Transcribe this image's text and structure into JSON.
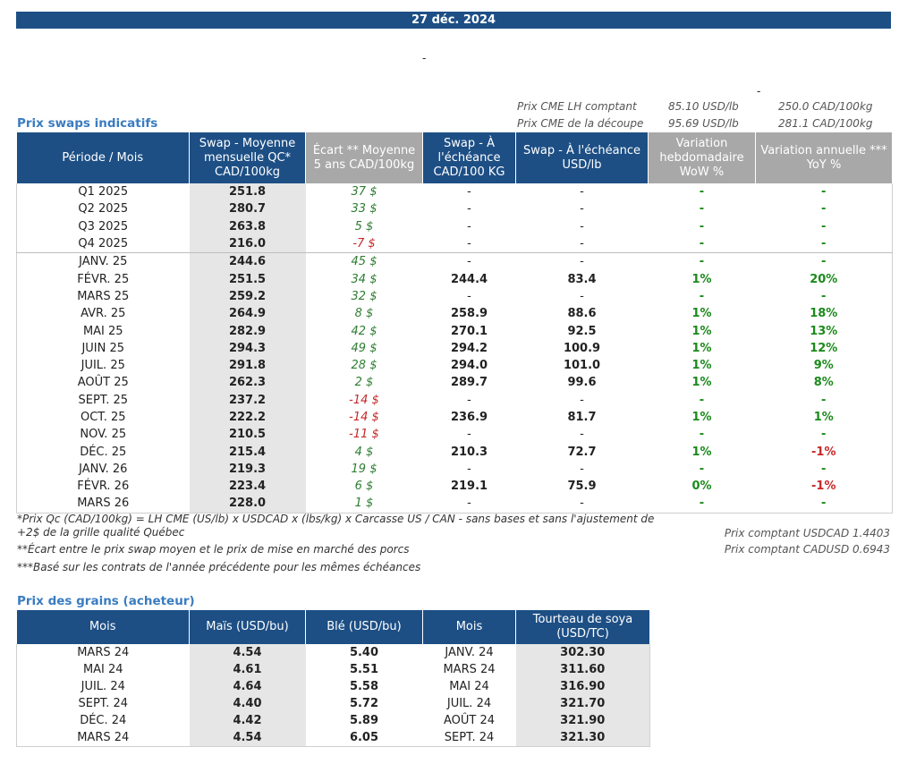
{
  "date": "27 déc. 2024",
  "dash_marks": [
    "-",
    "-"
  ],
  "cme": [
    {
      "label": "Prix CME LH comptant",
      "usd": "85.10 USD/lb",
      "cad": "250.0 CAD/100kg"
    },
    {
      "label": "Prix CME de la découpe",
      "usd": "95.69 USD/lb",
      "cad": "281.1 CAD/100kg"
    }
  ],
  "swaps": {
    "title": "Prix swaps indicatifs",
    "headers": [
      "Période / Mois",
      "Swap - Moyenne mensuelle QC* CAD/100kg",
      "Écart ** Moyenne 5 ans CAD/100kg",
      "Swap - À l'échéance CAD/100 KG",
      "Swap - À l'échéance USD/lb",
      "Variation hebdomadaire WoW %",
      "Variation annuelle *** YoY %"
    ],
    "rows": [
      [
        "Q1 2025",
        "251.8",
        "37 $",
        "-",
        "-",
        "-",
        "-"
      ],
      [
        "Q2 2025",
        "280.7",
        "33 $",
        "-",
        "-",
        "-",
        "-"
      ],
      [
        "Q3 2025",
        "263.8",
        "5 $",
        "-",
        "-",
        "-",
        "-"
      ],
      [
        "Q4 2025",
        "216.0",
        "-7 $",
        "-",
        "-",
        "-",
        "-"
      ],
      [
        "JANV. 25",
        "244.6",
        "45 $",
        "-",
        "-",
        "-",
        "-"
      ],
      [
        "FÉVR. 25",
        "251.5",
        "34 $",
        "244.4",
        "83.4",
        "1%",
        "20%"
      ],
      [
        "MARS 25",
        "259.2",
        "32 $",
        "-",
        "-",
        "-",
        "-"
      ],
      [
        "AVR. 25",
        "264.9",
        "8 $",
        "258.9",
        "88.6",
        "1%",
        "18%"
      ],
      [
        "MAI 25",
        "282.9",
        "42 $",
        "270.1",
        "92.5",
        "1%",
        "13%"
      ],
      [
        "JUIN 25",
        "294.3",
        "49 $",
        "294.2",
        "100.9",
        "1%",
        "12%"
      ],
      [
        "JUIL. 25",
        "291.8",
        "28 $",
        "294.0",
        "101.0",
        "1%",
        "9%"
      ],
      [
        "AOÛT 25",
        "262.3",
        "2 $",
        "289.7",
        "99.6",
        "1%",
        "8%"
      ],
      [
        "SEPT. 25",
        "237.2",
        "-14 $",
        "-",
        "-",
        "-",
        "-"
      ],
      [
        "OCT. 25",
        "222.2",
        "-14 $",
        "236.9",
        "81.7",
        "1%",
        "1%"
      ],
      [
        "NOV. 25",
        "210.5",
        "-11 $",
        "-",
        "-",
        "-",
        "-"
      ],
      [
        "DÉC. 25",
        "215.4",
        "4 $",
        "210.3",
        "72.7",
        "1%",
        "-1%"
      ],
      [
        "JANV. 26",
        "219.3",
        "19 $",
        "-",
        "-",
        "-",
        "-"
      ],
      [
        "FÉVR. 26",
        "223.4",
        "6 $",
        "219.1",
        "75.9",
        "0%",
        "-1%"
      ],
      [
        "MARS 26",
        "228.0",
        "1 $",
        "-",
        "-",
        "-",
        "-"
      ]
    ]
  },
  "notes": [
    "*Prix Qc (CAD/100kg) = LH CME (US/lb) x USDCAD x (lbs/kg) x Carcasse US / CAN - sans bases et sans l'ajustement de",
    "+2$ de la grille qualité Québec",
    "**Écart entre le prix swap moyen et le prix de mise en marché des porcs",
    "***Basé sur les contrats de l'année précédente pour les mêmes échéances"
  ],
  "fx": [
    "Prix comptant USDCAD 1.4403",
    "Prix comptant CADUSD 0.6943"
  ],
  "grains": {
    "title": "Prix des grains (acheteur)",
    "headers": [
      "Mois",
      "Maïs (USD/bu)",
      "Blé (USD/bu)",
      "Mois",
      "Tourteau de soya (USD/TC)"
    ],
    "rows": [
      [
        "MARS 24",
        "4.54",
        "5.40",
        "JANV. 24",
        "302.30"
      ],
      [
        "MAI 24",
        "4.61",
        "5.51",
        "MARS 24",
        "311.60"
      ],
      [
        "JUIL. 24",
        "4.64",
        "5.58",
        "MAI 24",
        "316.90"
      ],
      [
        "SEPT. 24",
        "4.40",
        "5.72",
        "JUIL. 24",
        "321.70"
      ],
      [
        "DÉC. 24",
        "4.42",
        "5.89",
        "AOÛT 24",
        "321.90"
      ],
      [
        "MARS 24",
        "4.54",
        "6.05",
        "SEPT. 24",
        "321.30"
      ]
    ]
  },
  "colors": {
    "header_blue": "#1d4f85",
    "header_grey": "#a8a8a8",
    "title_blue": "#3a7cc0",
    "positive": "#2e7d32",
    "negative": "#c62828"
  }
}
